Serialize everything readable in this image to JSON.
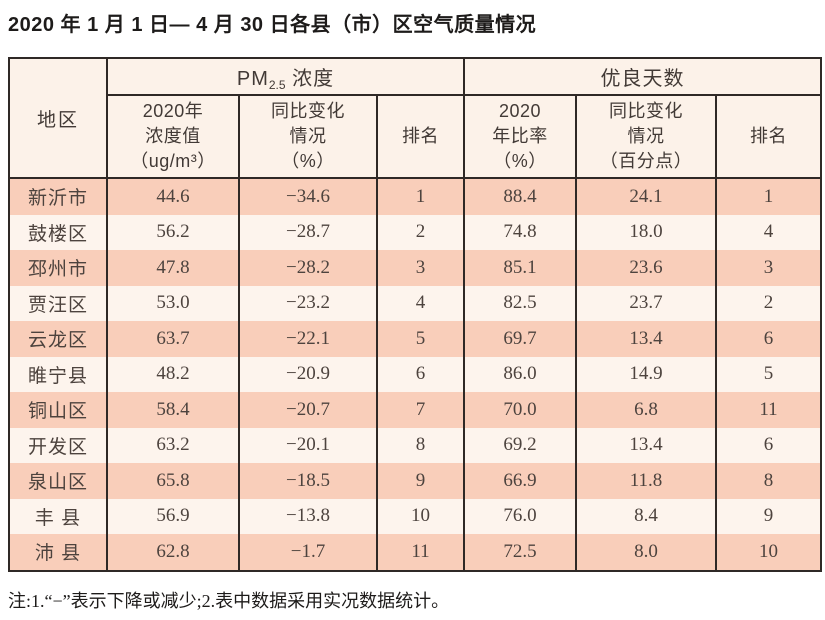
{
  "page": {
    "title": "2020 年 1 月 1 日— 4 月 30 日各县（市）区空气质量情况",
    "note": "注:1.“−”表示下降或减少;2.表中数据采用实况数据统计。"
  },
  "colors": {
    "border": "#2f2926",
    "row_peach": "#f9ceba",
    "row_light": "#fdf4ed",
    "header_bg": "#fcf2e9",
    "text": "#4d433e"
  },
  "table": {
    "region_header": "地区",
    "group_pm": {
      "prefix": "PM",
      "sub": "2.5",
      "suffix": " 浓度"
    },
    "group_good": "优良天数",
    "subheaders": {
      "pm_value": "2020年\n浓度值\n（ug/m³）",
      "pm_change": "同比变化\n情况\n（%）",
      "pm_rank": "排名",
      "good_rate": "2020\n年比率\n（%）",
      "good_change": "同比变化\n情况\n（百分点）",
      "good_rank": "排名"
    },
    "rows": [
      {
        "region": "新沂市",
        "pm_value": "44.6",
        "pm_change": "−34.6",
        "pm_rank": "1",
        "good_rate": "88.4",
        "good_change": "24.1",
        "good_rank": "1"
      },
      {
        "region": "鼓楼区",
        "pm_value": "56.2",
        "pm_change": "−28.7",
        "pm_rank": "2",
        "good_rate": "74.8",
        "good_change": "18.0",
        "good_rank": "4"
      },
      {
        "region": "邳州市",
        "pm_value": "47.8",
        "pm_change": "−28.2",
        "pm_rank": "3",
        "good_rate": "85.1",
        "good_change": "23.6",
        "good_rank": "3"
      },
      {
        "region": "贾汪区",
        "pm_value": "53.0",
        "pm_change": "−23.2",
        "pm_rank": "4",
        "good_rate": "82.5",
        "good_change": "23.7",
        "good_rank": "2"
      },
      {
        "region": "云龙区",
        "pm_value": "63.7",
        "pm_change": "−22.1",
        "pm_rank": "5",
        "good_rate": "69.7",
        "good_change": "13.4",
        "good_rank": "6"
      },
      {
        "region": "睢宁县",
        "pm_value": "48.2",
        "pm_change": "−20.9",
        "pm_rank": "6",
        "good_rate": "86.0",
        "good_change": "14.9",
        "good_rank": "5"
      },
      {
        "region": "铜山区",
        "pm_value": "58.4",
        "pm_change": "−20.7",
        "pm_rank": "7",
        "good_rate": "70.0",
        "good_change": "6.8",
        "good_rank": "11"
      },
      {
        "region": "开发区",
        "pm_value": "63.2",
        "pm_change": "−20.1",
        "pm_rank": "8",
        "good_rate": "69.2",
        "good_change": "13.4",
        "good_rank": "6"
      },
      {
        "region": "泉山区",
        "pm_value": "65.8",
        "pm_change": "−18.5",
        "pm_rank": "9",
        "good_rate": "66.9",
        "good_change": "11.8",
        "good_rank": "8"
      },
      {
        "region": "丰 县",
        "pm_value": "56.9",
        "pm_change": "−13.8",
        "pm_rank": "10",
        "good_rate": "76.0",
        "good_change": "8.4",
        "good_rank": "9"
      },
      {
        "region": "沛 县",
        "pm_value": "62.8",
        "pm_change": "−1.7",
        "pm_rank": "11",
        "good_rate": "72.5",
        "good_change": "8.0",
        "good_rank": "10"
      }
    ]
  },
  "chart_data": {
    "type": "table",
    "title": "2020年1月1日—4月30日各县（市）区空气质量情况",
    "columns": [
      "地区",
      "PM2.5浓度 2020年浓度值(ug/m3)",
      "PM2.5浓度 同比变化情况(%)",
      "PM2.5浓度 排名",
      "优良天数 2020年比率(%)",
      "优良天数 同比变化情况(百分点)",
      "优良天数 排名"
    ],
    "rows": [
      [
        "新沂市",
        44.6,
        -34.6,
        1,
        88.4,
        24.1,
        1
      ],
      [
        "鼓楼区",
        56.2,
        -28.7,
        2,
        74.8,
        18.0,
        4
      ],
      [
        "邳州市",
        47.8,
        -28.2,
        3,
        85.1,
        23.6,
        3
      ],
      [
        "贾汪区",
        53.0,
        -23.2,
        4,
        82.5,
        23.7,
        2
      ],
      [
        "云龙区",
        63.7,
        -22.1,
        5,
        69.7,
        13.4,
        6
      ],
      [
        "睢宁县",
        48.2,
        -20.9,
        6,
        86.0,
        14.9,
        5
      ],
      [
        "铜山区",
        58.4,
        -20.7,
        7,
        70.0,
        6.8,
        11
      ],
      [
        "开发区",
        63.2,
        -20.1,
        8,
        69.2,
        13.4,
        6
      ],
      [
        "泉山区",
        65.8,
        -18.5,
        9,
        66.9,
        11.8,
        8
      ],
      [
        "丰县",
        56.9,
        -13.8,
        10,
        76.0,
        8.4,
        9
      ],
      [
        "沛县",
        62.8,
        -1.7,
        11,
        72.5,
        8.0,
        10
      ]
    ],
    "note": "注:1.“−”表示下降或减少;2.表中数据采用实况数据统计。"
  }
}
